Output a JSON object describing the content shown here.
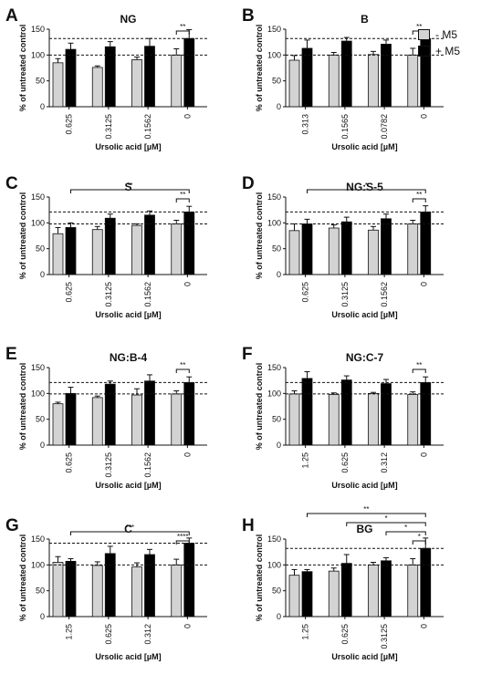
{
  "legend": {
    "items": [
      {
        "label": "- M5",
        "color": "#d3d3d3"
      },
      {
        "label": "+ M5",
        "color": "#000000"
      }
    ]
  },
  "chart_data": [
    {
      "type": "bar",
      "letter": "A",
      "title": "NG",
      "categories": [
        "0.625",
        "0.3125",
        "0.1562",
        "0"
      ],
      "xlabel": "Ursolic acid [µM]",
      "ylabel": "% of untreated control",
      "ylim": [
        0,
        150
      ],
      "yticks": [
        0,
        50,
        100,
        150
      ],
      "series": [
        {
          "name": "- M5",
          "values": [
            85,
            76,
            91,
            100
          ],
          "errors": [
            8,
            3,
            5,
            12
          ]
        },
        {
          "name": "+ M5",
          "values": [
            111,
            116,
            117,
            132
          ],
          "errors": [
            12,
            10,
            15,
            17
          ]
        }
      ],
      "reference_lines": [
        100,
        132
      ],
      "significance": [
        {
          "label": "**",
          "from": "3.-",
          "to": "3.+",
          "level": 1
        }
      ]
    },
    {
      "type": "bar",
      "letter": "B",
      "title": "B",
      "categories": [
        "0.313",
        "0.1565",
        "0.0782",
        "0"
      ],
      "xlabel": "Ursolic acid [µM]",
      "ylabel": "% of untreated control",
      "ylim": [
        0,
        150
      ],
      "yticks": [
        0,
        50,
        100,
        150
      ],
      "series": [
        {
          "name": "- M5",
          "values": [
            90,
            100,
            101,
            100
          ],
          "errors": [
            9,
            5,
            6,
            13
          ]
        },
        {
          "name": "+ M5",
          "values": [
            113,
            127,
            121,
            132
          ],
          "errors": [
            16,
            7,
            8,
            17
          ]
        }
      ],
      "reference_lines": [
        100,
        132
      ],
      "significance": [
        {
          "label": "**",
          "from": "3.-",
          "to": "3.+",
          "level": 1
        }
      ]
    },
    {
      "type": "bar",
      "letter": "C",
      "title": "S",
      "categories": [
        "0.625",
        "0.3125",
        "0.1562",
        "0"
      ],
      "xlabel": "Ursolic acid [µM]",
      "ylabel": "% of untreated control",
      "ylim": [
        0,
        150
      ],
      "yticks": [
        0,
        50,
        100,
        150
      ],
      "series": [
        {
          "name": "- M5",
          "values": [
            79,
            87,
            95,
            98
          ],
          "errors": [
            12,
            6,
            3,
            7
          ]
        },
        {
          "name": "+ M5",
          "values": [
            91,
            109,
            115,
            121
          ],
          "errors": [
            9,
            8,
            8,
            11
          ]
        }
      ],
      "reference_lines": [
        98,
        121
      ],
      "significance": [
        {
          "label": "**",
          "from": "3.-",
          "to": "3.+",
          "level": 1
        },
        {
          "label": "**",
          "from": "0.+",
          "to": "3.+",
          "level": 2
        }
      ]
    },
    {
      "type": "bar",
      "letter": "D",
      "title": "NG:S-5",
      "categories": [
        "0.625",
        "0.3125",
        "0.1562",
        "0"
      ],
      "xlabel": "Ursolic acid [µM]",
      "ylabel": "% of untreated control",
      "ylim": [
        0,
        150
      ],
      "yticks": [
        0,
        50,
        100,
        150
      ],
      "series": [
        {
          "name": "- M5",
          "values": [
            85,
            90,
            86,
            98
          ],
          "errors": [
            13,
            6,
            7,
            7
          ]
        },
        {
          "name": "+ M5",
          "values": [
            98,
            102,
            108,
            121
          ],
          "errors": [
            9,
            9,
            9,
            12
          ]
        }
      ],
      "reference_lines": [
        98,
        121
      ],
      "significance": [
        {
          "label": "**",
          "from": "3.-",
          "to": "3.+",
          "level": 1
        },
        {
          "label": "*",
          "from": "0.+",
          "to": "3.+",
          "level": 2
        }
      ]
    },
    {
      "type": "bar",
      "letter": "E",
      "title": "NG:B-4",
      "categories": [
        "0.625",
        "0.3125",
        "0.1562",
        "0"
      ],
      "xlabel": "Ursolic acid [µM]",
      "ylabel": "% of untreated control",
      "ylim": [
        0,
        150
      ],
      "yticks": [
        0,
        50,
        100,
        150
      ],
      "series": [
        {
          "name": "- M5",
          "values": [
            80,
            92,
            97,
            99
          ],
          "errors": [
            3,
            3,
            12,
            6
          ]
        },
        {
          "name": "+ M5",
          "values": [
            100,
            118,
            124,
            121
          ],
          "errors": [
            12,
            6,
            12,
            11
          ]
        }
      ],
      "reference_lines": [
        99,
        121
      ],
      "significance": [
        {
          "label": "**",
          "from": "3.-",
          "to": "3.+",
          "level": 1
        }
      ]
    },
    {
      "type": "bar",
      "letter": "F",
      "title": "NG:C-7",
      "categories": [
        "1.25",
        "0.625",
        "0.312",
        "0"
      ],
      "xlabel": "Ursolic acid [µM]",
      "ylabel": "% of untreated control",
      "ylim": [
        0,
        150
      ],
      "yticks": [
        0,
        50,
        100,
        150
      ],
      "series": [
        {
          "name": "- M5",
          "values": [
            99,
            98,
            100,
            98
          ],
          "errors": [
            6,
            3,
            2,
            5
          ]
        },
        {
          "name": "+ M5",
          "values": [
            129,
            126,
            119,
            121
          ],
          "errors": [
            13,
            8,
            8,
            11
          ]
        }
      ],
      "reference_lines": [
        99,
        121
      ],
      "significance": [
        {
          "label": "**",
          "from": "3.-",
          "to": "3.+",
          "level": 1
        }
      ]
    },
    {
      "type": "bar",
      "letter": "G",
      "title": "C",
      "categories": [
        "1.25",
        "0.625",
        "0.312",
        "0"
      ],
      "xlabel": "Ursolic acid [µM]",
      "ylabel": "% of untreated control",
      "ylim": [
        0,
        150
      ],
      "yticks": [
        0,
        50,
        100,
        150
      ],
      "series": [
        {
          "name": "- M5",
          "values": [
            105,
            99,
            96,
            100
          ],
          "errors": [
            11,
            7,
            8,
            11
          ]
        },
        {
          "name": "+ M5",
          "values": [
            107,
            122,
            120,
            142
          ],
          "errors": [
            5,
            14,
            10,
            10
          ]
        }
      ],
      "reference_lines": [
        100,
        142
      ],
      "significance": [
        {
          "label": "****",
          "from": "3.-",
          "to": "3.+",
          "level": 1
        },
        {
          "label": "***",
          "from": "0.+",
          "to": "3.+",
          "level": 2
        }
      ]
    },
    {
      "type": "bar",
      "letter": "H",
      "title": "BG",
      "categories": [
        "1.25",
        "0.625",
        "0.3125",
        "0"
      ],
      "xlabel": "Ursolic acid [µM]",
      "ylabel": "% of untreated control",
      "ylim": [
        0,
        150
      ],
      "yticks": [
        0,
        50,
        100,
        150
      ],
      "series": [
        {
          "name": "- M5",
          "values": [
            80,
            88,
            100,
            100
          ],
          "errors": [
            11,
            6,
            5,
            12
          ]
        },
        {
          "name": "+ M5",
          "values": [
            87,
            103,
            108,
            132
          ],
          "errors": [
            4,
            17,
            6,
            20
          ]
        }
      ],
      "reference_lines": [
        100,
        132
      ],
      "significance": [
        {
          "label": "*",
          "from": "3.-",
          "to": "3.+",
          "level": 1
        },
        {
          "label": "*",
          "from": "2.+",
          "to": "3.+",
          "level": 2
        },
        {
          "label": "*",
          "from": "1.+",
          "to": "3.+",
          "level": 3
        },
        {
          "label": "**",
          "from": "0.+",
          "to": "3.+",
          "level": 4
        }
      ]
    }
  ]
}
